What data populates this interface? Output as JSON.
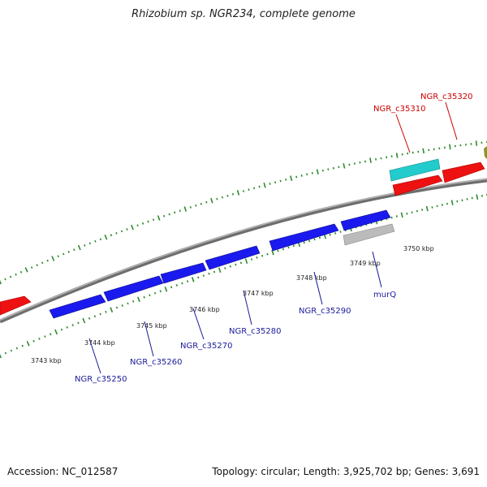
{
  "title": "Rhizobium sp. NGR234, complete genome",
  "footer": {
    "accession": "Accession: NC_012587",
    "summary": "Topology: circular; Length: 3,925,702 bp; Genes: 3,691"
  },
  "colors": {
    "backbone": "#888888",
    "dots": "#2e8b2e",
    "reverse_label": "#cc0000",
    "forward_label": "#1a1a99",
    "gene_blue": "#1a1aee",
    "gene_red": "#ee1111",
    "gene_cyan": "#22cccc",
    "gene_gray": "#bbbbbb"
  },
  "scale_labels": [
    "3743 kbp",
    "3744 kbp",
    "3745 kbp",
    "3746 kbp",
    "3747 kbp",
    "3748 kbp",
    "3749 kbp",
    "3750 kbp"
  ],
  "gene_labels": {
    "c35250": "NGR_c35250",
    "c35260": "NGR_c35260",
    "c35270": "NGR_c35270",
    "c35280": "NGR_c35280",
    "c35290": "NGR_c35290",
    "murQ": "murQ",
    "c35310": "NGR_c35310",
    "c35320": "NGR_c35320"
  }
}
